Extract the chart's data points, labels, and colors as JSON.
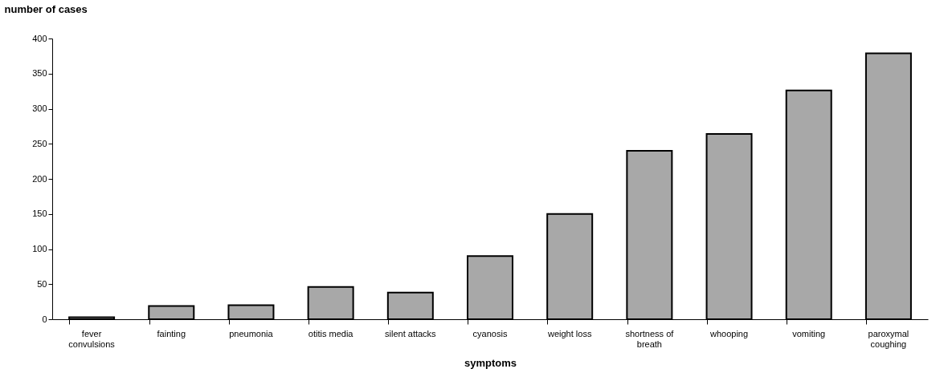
{
  "chart_data": {
    "type": "bar",
    "xlabel": "symptoms",
    "ylabel": "number of cases",
    "categories": [
      "fever convulsions",
      "fainting",
      "pneumonia",
      "otitis media",
      "silent attacks",
      "cyanosis",
      "weight loss",
      "shortness of breath",
      "whooping",
      "vomiting",
      "paroxymal coughing"
    ],
    "values": [
      3,
      19,
      20,
      46,
      38,
      90,
      150,
      240,
      264,
      326,
      379
    ],
    "color": "#a8a8a8",
    "ylim": [
      0,
      400
    ],
    "yticks": [
      0,
      50,
      100,
      150,
      200,
      250,
      300,
      350,
      400
    ],
    "grid": false
  }
}
